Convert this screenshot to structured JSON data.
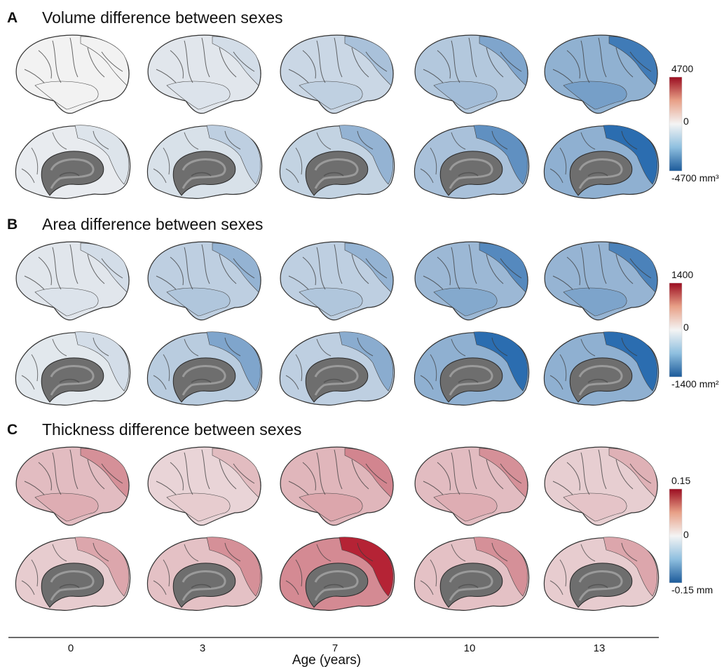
{
  "panels": [
    {
      "letter": "A",
      "title": "Volume difference between sexes",
      "colorbar": {
        "max": "4700",
        "mid": "0",
        "min": "-4700 mm³"
      },
      "lateral": [
        0.0,
        -0.15,
        -0.35,
        -0.55,
        -0.85
      ],
      "medial": [
        -0.1,
        -0.25,
        -0.45,
        -0.7,
        -0.95
      ]
    },
    {
      "letter": "B",
      "title": "Area difference between sexes",
      "colorbar": {
        "max": "1400",
        "mid": "0",
        "min": "-1400 mm²"
      },
      "lateral": [
        -0.15,
        -0.45,
        -0.45,
        -0.75,
        -0.8
      ],
      "medial": [
        -0.15,
        -0.55,
        -0.5,
        -0.95,
        -0.95
      ]
    },
    {
      "letter": "C",
      "title": "Thickness difference between sexes",
      "colorbar": {
        "max": "0.15",
        "mid": "0",
        "min": "-0.15 mm"
      },
      "lateral": [
        0.45,
        0.25,
        0.5,
        0.45,
        0.3
      ],
      "medial": [
        0.35,
        0.45,
        0.95,
        0.45,
        0.35
      ]
    }
  ],
  "axis": {
    "ticks": [
      "0",
      "3",
      "7",
      "10",
      "13"
    ],
    "xlabel": "Age (years)"
  },
  "colors": {
    "negative": "#2166ac",
    "neutral": "#f2f2f2",
    "positive": "#b2182b",
    "subcortex": "#6e6e6e"
  }
}
